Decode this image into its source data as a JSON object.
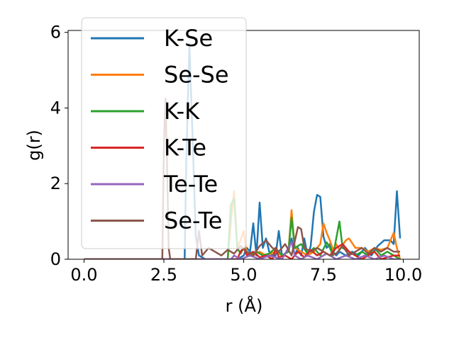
{
  "chart_data": {
    "type": "line",
    "title": "",
    "xlabel": "r (Å)",
    "ylabel": "g(r)",
    "xlim": [
      -0.5,
      10.5
    ],
    "ylim": [
      0,
      6.05
    ],
    "xticks": [
      0.0,
      2.5,
      5.0,
      7.5,
      10.0
    ],
    "xtick_labels": [
      "0.0",
      "2.5",
      "5.0",
      "7.5",
      "10.0"
    ],
    "yticks": [
      0,
      2,
      4,
      6
    ],
    "ytick_labels": [
      "0",
      "2",
      "4",
      "6"
    ],
    "grid": false,
    "legend_position": "upper-left",
    "series": [
      {
        "name": "K-Se",
        "color": "#1f77b4",
        "points": [
          [
            0,
            0
          ],
          [
            3.15,
            0
          ],
          [
            3.2,
            2.5
          ],
          [
            3.3,
            5.7
          ],
          [
            3.4,
            3.2
          ],
          [
            3.5,
            0.6
          ],
          [
            3.6,
            0.1
          ],
          [
            3.8,
            0
          ],
          [
            4.8,
            0
          ],
          [
            5.0,
            0.1
          ],
          [
            5.1,
            0.3
          ],
          [
            5.2,
            0.2
          ],
          [
            5.3,
            0.95
          ],
          [
            5.4,
            0.1
          ],
          [
            5.5,
            1.5
          ],
          [
            5.6,
            0.3
          ],
          [
            5.7,
            0.55
          ],
          [
            5.8,
            0.2
          ],
          [
            5.9,
            0.1
          ],
          [
            6.0,
            0.1
          ],
          [
            6.1,
            0.75
          ],
          [
            6.2,
            0.1
          ],
          [
            6.4,
            0.2
          ],
          [
            6.5,
            0.55
          ],
          [
            6.6,
            0.1
          ],
          [
            6.7,
            0.3
          ],
          [
            6.8,
            0.1
          ],
          [
            6.9,
            0.55
          ],
          [
            7.0,
            0.1
          ],
          [
            7.1,
            0.35
          ],
          [
            7.2,
            1.25
          ],
          [
            7.3,
            1.7
          ],
          [
            7.4,
            1.65
          ],
          [
            7.5,
            0.6
          ],
          [
            7.6,
            0.3
          ],
          [
            7.7,
            0.4
          ],
          [
            7.8,
            0.2
          ],
          [
            7.9,
            0.1
          ],
          [
            8.0,
            0.2
          ],
          [
            8.2,
            0.1
          ],
          [
            8.4,
            0.2
          ],
          [
            8.6,
            0.1
          ],
          [
            8.8,
            0.3
          ],
          [
            9.0,
            0.1
          ],
          [
            9.2,
            0.35
          ],
          [
            9.4,
            0.5
          ],
          [
            9.6,
            0.5
          ],
          [
            9.7,
            0.4
          ],
          [
            9.8,
            1.8
          ],
          [
            9.9,
            0.55
          ]
        ]
      },
      {
        "name": "Se-Se",
        "color": "#ff7f0e",
        "points": [
          [
            0,
            0
          ],
          [
            4.5,
            0
          ],
          [
            4.6,
            1.0
          ],
          [
            4.7,
            1.8
          ],
          [
            4.8,
            0.3
          ],
          [
            4.9,
            0.5
          ],
          [
            5.0,
            0.75
          ],
          [
            5.1,
            0.1
          ],
          [
            5.3,
            0.1
          ],
          [
            5.5,
            0.2
          ],
          [
            5.7,
            0.1
          ],
          [
            6.0,
            0.2
          ],
          [
            6.2,
            0.1
          ],
          [
            6.4,
            0.2
          ],
          [
            6.5,
            1.3
          ],
          [
            6.6,
            0.3
          ],
          [
            6.8,
            0.2
          ],
          [
            7.0,
            0.1
          ],
          [
            7.2,
            0.2
          ],
          [
            7.4,
            0.4
          ],
          [
            7.5,
            0.95
          ],
          [
            7.6,
            0.7
          ],
          [
            7.7,
            0.5
          ],
          [
            7.8,
            0.25
          ],
          [
            7.9,
            0.4
          ],
          [
            8.0,
            0.25
          ],
          [
            8.2,
            0.5
          ],
          [
            8.3,
            0.55
          ],
          [
            8.5,
            0.3
          ],
          [
            8.7,
            0.3
          ],
          [
            8.9,
            0.2
          ],
          [
            9.1,
            0.3
          ],
          [
            9.3,
            0.25
          ],
          [
            9.5,
            0.3
          ],
          [
            9.7,
            0.7
          ],
          [
            9.8,
            0.3
          ],
          [
            9.9,
            0.0
          ]
        ]
      },
      {
        "name": "K-K",
        "color": "#2ca02c",
        "points": [
          [
            0,
            0
          ],
          [
            4.5,
            0
          ],
          [
            4.6,
            1.45
          ],
          [
            4.7,
            1.6
          ],
          [
            4.8,
            0.3
          ],
          [
            4.9,
            0.15
          ],
          [
            5.0,
            0.3
          ],
          [
            5.2,
            0.1
          ],
          [
            5.4,
            0.2
          ],
          [
            5.6,
            0.1
          ],
          [
            5.8,
            0.15
          ],
          [
            6.0,
            0.3
          ],
          [
            6.2,
            0.1
          ],
          [
            6.4,
            0.2
          ],
          [
            6.5,
            1.1
          ],
          [
            6.6,
            0.3
          ],
          [
            6.8,
            0.4
          ],
          [
            7.0,
            0.15
          ],
          [
            7.2,
            0.3
          ],
          [
            7.4,
            0.1
          ],
          [
            7.6,
            0.45
          ],
          [
            7.7,
            0.3
          ],
          [
            7.8,
            0.1
          ],
          [
            8.0,
            1.0
          ],
          [
            8.1,
            0.3
          ],
          [
            8.3,
            0.2
          ],
          [
            8.5,
            0.1
          ],
          [
            8.7,
            0.2
          ],
          [
            8.9,
            0.1
          ],
          [
            9.1,
            0.3
          ],
          [
            9.3,
            0.1
          ],
          [
            9.5,
            0.2
          ],
          [
            9.7,
            0.1
          ],
          [
            9.9,
            0.0
          ]
        ]
      },
      {
        "name": "K-Te",
        "color": "#d62728",
        "points": [
          [
            0,
            0
          ],
          [
            4.8,
            0
          ],
          [
            4.9,
            0.2
          ],
          [
            5.0,
            0.3
          ],
          [
            5.1,
            0.1
          ],
          [
            5.3,
            0.2
          ],
          [
            5.5,
            0.05
          ],
          [
            5.7,
            0.1
          ],
          [
            5.9,
            0.0
          ],
          [
            6.0,
            0.3
          ],
          [
            6.1,
            0.05
          ],
          [
            6.3,
            0.1
          ],
          [
            6.5,
            0.0
          ],
          [
            6.7,
            0.2
          ],
          [
            6.9,
            0.05
          ],
          [
            7.1,
            0.25
          ],
          [
            7.3,
            0.1
          ],
          [
            7.5,
            0.2
          ],
          [
            7.7,
            0.1
          ],
          [
            7.9,
            0.3
          ],
          [
            8.1,
            0.4
          ],
          [
            8.3,
            0.2
          ],
          [
            8.5,
            0.1
          ],
          [
            8.7,
            0.0
          ],
          [
            8.9,
            0.1
          ],
          [
            9.1,
            0.2
          ],
          [
            9.3,
            0.0
          ],
          [
            9.5,
            0.05
          ],
          [
            9.7,
            0.1
          ],
          [
            9.9,
            0.1
          ]
        ]
      },
      {
        "name": "Te-Te",
        "color": "#9467bd",
        "points": [
          [
            0,
            0
          ],
          [
            4.6,
            0
          ],
          [
            4.7,
            0.1
          ],
          [
            4.9,
            0.0
          ],
          [
            5.2,
            0.1
          ],
          [
            5.5,
            0.0
          ],
          [
            5.8,
            0.1
          ],
          [
            6.2,
            0.0
          ],
          [
            6.5,
            0.45
          ],
          [
            6.6,
            0.1
          ],
          [
            6.8,
            0.0
          ],
          [
            7.0,
            0.1
          ],
          [
            7.3,
            0.0
          ],
          [
            7.6,
            0.15
          ],
          [
            7.9,
            0.0
          ],
          [
            8.2,
            0.1
          ],
          [
            8.5,
            0.0
          ],
          [
            8.8,
            0.1
          ],
          [
            9.1,
            0.0
          ],
          [
            9.4,
            0.1
          ],
          [
            9.7,
            0.0
          ],
          [
            9.9,
            0.0
          ]
        ]
      },
      {
        "name": "Se-Te",
        "color": "#8c564b",
        "points": [
          [
            0,
            0
          ],
          [
            2.45,
            0
          ],
          [
            2.5,
            3.0
          ],
          [
            2.55,
            4.25
          ],
          [
            2.6,
            2.5
          ],
          [
            2.65,
            0.3
          ],
          [
            2.7,
            0
          ],
          [
            3.5,
            0
          ],
          [
            3.6,
            0.75
          ],
          [
            3.7,
            0.1
          ],
          [
            3.9,
            0.3
          ],
          [
            4.1,
            0.2
          ],
          [
            4.3,
            0.1
          ],
          [
            4.5,
            0.25
          ],
          [
            4.7,
            0.15
          ],
          [
            4.9,
            0.35
          ],
          [
            5.1,
            0.2
          ],
          [
            5.3,
            0.1
          ],
          [
            5.5,
            0.35
          ],
          [
            5.7,
            0.5
          ],
          [
            5.9,
            0.3
          ],
          [
            6.1,
            0.2
          ],
          [
            6.3,
            0.4
          ],
          [
            6.5,
            0.1
          ],
          [
            6.7,
            0.85
          ],
          [
            6.8,
            0.8
          ],
          [
            6.9,
            0.3
          ],
          [
            7.1,
            0.2
          ],
          [
            7.3,
            0.3
          ],
          [
            7.5,
            0.2
          ],
          [
            7.7,
            0.1
          ],
          [
            7.9,
            0.15
          ],
          [
            8.1,
            0.35
          ],
          [
            8.3,
            0.1
          ],
          [
            8.5,
            0.2
          ],
          [
            8.7,
            0.3
          ],
          [
            8.9,
            0.15
          ],
          [
            9.1,
            0.3
          ],
          [
            9.3,
            0.2
          ],
          [
            9.5,
            0.3
          ],
          [
            9.7,
            0.2
          ],
          [
            9.9,
            0.2
          ]
        ]
      }
    ]
  }
}
